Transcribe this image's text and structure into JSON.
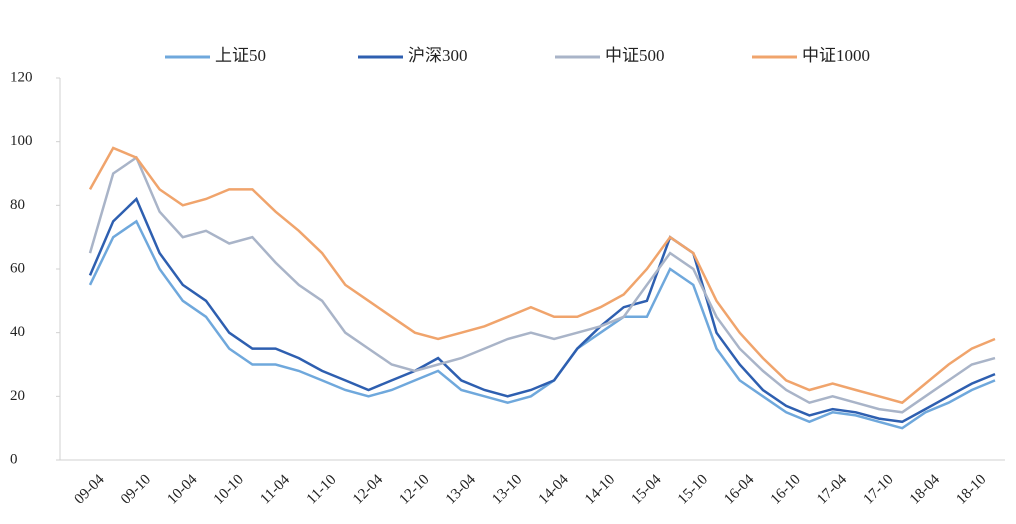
{
  "chart_data": {
    "type": "line",
    "categories": [
      "09-04",
      null,
      "09-10",
      null,
      "10-04",
      null,
      "10-10",
      null,
      "11-04",
      null,
      "11-10",
      null,
      "12-04",
      null,
      "12-10",
      null,
      "13-04",
      null,
      "13-10",
      null,
      "14-04",
      null,
      "14-10",
      null,
      "15-04",
      null,
      "15-10",
      null,
      "16-04",
      null,
      "16-10",
      null,
      "17-04",
      null,
      "17-10",
      null,
      "18-04",
      null,
      "18-10",
      null
    ],
    "series": [
      {
        "name": "上证50",
        "color": "#6fa8dc",
        "values": [
          55,
          70,
          75,
          60,
          50,
          45,
          35,
          30,
          30,
          28,
          25,
          22,
          20,
          22,
          25,
          28,
          22,
          20,
          18,
          20,
          25,
          35,
          40,
          45,
          45,
          60,
          55,
          35,
          25,
          20,
          15,
          12,
          15,
          14,
          12,
          10,
          15,
          18,
          22,
          25
        ]
      },
      {
        "name": "沪深300",
        "color": "#2e5fb0",
        "values": [
          58,
          75,
          82,
          65,
          55,
          50,
          40,
          35,
          35,
          32,
          28,
          25,
          22,
          25,
          28,
          32,
          25,
          22,
          20,
          22,
          25,
          35,
          42,
          48,
          50,
          70,
          65,
          40,
          30,
          22,
          17,
          14,
          16,
          15,
          13,
          12,
          16,
          20,
          24,
          27
        ]
      },
      {
        "name": "中证500",
        "color": "#a9b4c8",
        "values": [
          65,
          90,
          95,
          78,
          70,
          72,
          68,
          70,
          62,
          55,
          50,
          40,
          35,
          30,
          28,
          30,
          32,
          35,
          38,
          40,
          38,
          40,
          42,
          45,
          55,
          65,
          60,
          45,
          35,
          28,
          22,
          18,
          20,
          18,
          16,
          15,
          20,
          25,
          30,
          32
        ]
      },
      {
        "name": "中证1000",
        "color": "#f0a46c",
        "values": [
          85,
          98,
          95,
          85,
          80,
          82,
          85,
          85,
          78,
          72,
          65,
          55,
          50,
          45,
          40,
          38,
          40,
          42,
          45,
          48,
          45,
          45,
          48,
          52,
          60,
          70,
          65,
          50,
          40,
          32,
          25,
          22,
          24,
          22,
          20,
          18,
          24,
          30,
          35,
          38
        ]
      }
    ],
    "ylim": [
      0,
      120
    ],
    "yticks": [
      0,
      20,
      40,
      60,
      80,
      100,
      120
    ],
    "grid": false,
    "legend": "top"
  }
}
